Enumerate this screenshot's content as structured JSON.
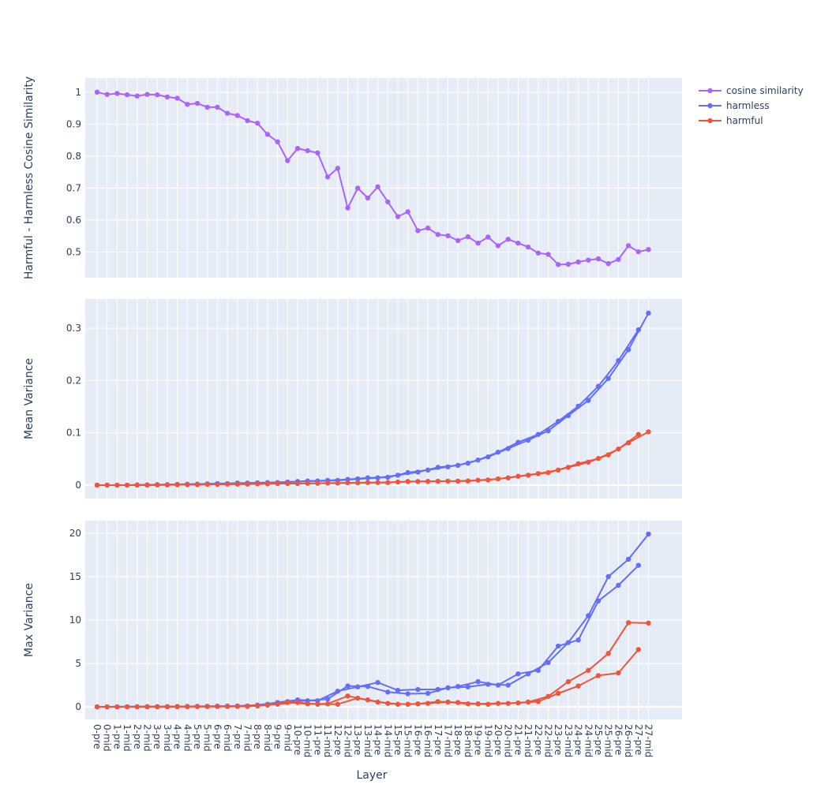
{
  "chart_data": {
    "type": "line",
    "x_label": "Layer",
    "categories": [
      "0-pre",
      "0-mid",
      "1-pre",
      "1-mid",
      "2-pre",
      "2-mid",
      "3-pre",
      "3-mid",
      "4-pre",
      "4-mid",
      "5-pre",
      "5-mid",
      "6-pre",
      "6-mid",
      "7-pre",
      "7-mid",
      "8-pre",
      "8-mid",
      "9-pre",
      "9-mid",
      "10-pre",
      "10-mid",
      "11-pre",
      "11-mid",
      "12-pre",
      "12-mid",
      "13-pre",
      "13-mid",
      "14-pre",
      "14-mid",
      "15-pre",
      "15-mid",
      "16-pre",
      "16-mid",
      "17-pre",
      "17-mid",
      "18-pre",
      "18-mid",
      "19-pre",
      "19-mid",
      "20-pre",
      "20-mid",
      "21-pre",
      "21-mid",
      "22-pre",
      "22-mid",
      "23-pre",
      "23-mid",
      "24-pre",
      "24-mid",
      "25-pre",
      "25-mid",
      "26-pre",
      "26-mid",
      "27-pre",
      "27-mid"
    ],
    "legend": {
      "placement": "top-right",
      "entries": [
        {
          "name": "cosine similarity",
          "color": "#ab63fa"
        },
        {
          "name": "harmless",
          "color": "#636efa"
        },
        {
          "name": "harmful",
          "color": "#ef553b"
        }
      ]
    },
    "subplots": [
      {
        "ylabel": "Harmful - Harmless Cosine Similarity",
        "ylim": [
          0.42,
          1.044
        ],
        "yticks": [
          0.5,
          0.6,
          0.7,
          0.8,
          0.9,
          1
        ],
        "ytick_labels": [
          "0.5",
          "0.6",
          "0.7",
          "0.8",
          "0.9",
          "1"
        ],
        "series": [
          {
            "name": "cosine similarity",
            "color": "#ab63fa",
            "split_pre_mid": false,
            "values": [
              1.0,
              0.993,
              0.996,
              0.992,
              0.988,
              0.993,
              0.992,
              0.985,
              0.981,
              0.962,
              0.965,
              0.953,
              0.953,
              0.934,
              0.927,
              0.911,
              0.903,
              0.868,
              0.845,
              0.786,
              0.824,
              0.817,
              0.81,
              0.735,
              0.762,
              0.638,
              0.7,
              0.669,
              0.704,
              0.657,
              0.611,
              0.626,
              0.567,
              0.575,
              0.555,
              0.551,
              0.536,
              0.548,
              0.528,
              0.547,
              0.52,
              0.54,
              0.528,
              0.516,
              0.497,
              0.493,
              0.461,
              0.462,
              0.469,
              0.475,
              0.479,
              0.464,
              0.477,
              0.52,
              0.501,
              0.508
            ]
          }
        ]
      },
      {
        "ylabel": "Mean Variance",
        "ylim": [
          -0.0256,
          0.356
        ],
        "yticks": [
          0,
          0.1,
          0.2,
          0.3
        ],
        "ytick_labels": [
          "0",
          "0.1",
          "0.2",
          "0.3"
        ],
        "series": [
          {
            "name": "harmless",
            "color": "#636efa",
            "split_pre_mid": true,
            "values": [
              0,
              0,
              0,
              0,
              0.0005,
              0.0005,
              0.001,
              0.001,
              0.0015,
              0.002,
              0.002,
              0.0025,
              0.003,
              0.003,
              0.004,
              0.004,
              0.0045,
              0.005,
              0.005,
              0.006,
              0.007,
              0.008,
              0.008,
              0.009,
              0.009,
              0.011,
              0.012,
              0.014,
              0.014,
              0.015,
              0.019,
              0.024,
              0.025,
              0.029,
              0.034,
              0.035,
              0.038,
              0.042,
              0.048,
              0.054,
              0.063,
              0.07,
              0.082,
              0.086,
              0.097,
              0.104,
              0.122,
              0.133,
              0.151,
              0.162,
              0.189,
              0.204,
              0.238,
              0.259,
              0.297,
              0.329
            ]
          },
          {
            "name": "harmful",
            "color": "#ef553b",
            "split_pre_mid": true,
            "values": [
              0,
              0,
              0,
              0,
              0,
              0,
              0.0005,
              0.0005,
              0.001,
              0.001,
              0.001,
              0.0015,
              0.0015,
              0.002,
              0.002,
              0.002,
              0.0025,
              0.0025,
              0.003,
              0.003,
              0.003,
              0.0035,
              0.0035,
              0.004,
              0.004,
              0.0045,
              0.0045,
              0.005,
              0.005,
              0.005,
              0.006,
              0.007,
              0.007,
              0.0072,
              0.0075,
              0.0077,
              0.0077,
              0.008,
              0.0095,
              0.01,
              0.012,
              0.014,
              0.017,
              0.019,
              0.022,
              0.024,
              0.029,
              0.034,
              0.041,
              0.044,
              0.051,
              0.058,
              0.069,
              0.081,
              0.097,
              0.102
            ]
          }
        ]
      },
      {
        "ylabel": "Max Variance",
        "ylim": [
          -1.45,
          21.45
        ],
        "yticks": [
          0,
          5,
          10,
          15,
          20
        ],
        "ytick_labels": [
          "0",
          "5",
          "10",
          "15",
          "20"
        ],
        "series": [
          {
            "name": "harmless",
            "color": "#636efa",
            "split_pre_mid": true,
            "values": [
              0,
              0,
              0.01,
              0.01,
              0.02,
              0.02,
              0.03,
              0.03,
              0.04,
              0.05,
              0.06,
              0.07,
              0.08,
              0.09,
              0.1,
              0.1,
              0.2,
              0.3,
              0.5,
              0.6,
              0.8,
              0.7,
              0.7,
              0.9,
              1.8,
              2.4,
              2.3,
              2.35,
              2.8,
              1.7,
              1.9,
              1.5,
              2.0,
              1.55,
              2.0,
              2.2,
              2.35,
              2.3,
              2.9,
              2.6,
              2.5,
              2.5,
              3.8,
              3.8,
              4.2,
              5.1,
              7.0,
              7.4,
              7.7,
              10.5,
              12.2,
              15.0,
              14.0,
              17.0,
              16.3,
              19.9
            ]
          },
          {
            "name": "harmful",
            "color": "#ef553b",
            "split_pre_mid": true,
            "values": [
              0,
              0,
              0,
              0,
              0.01,
              0.01,
              0.01,
              0.02,
              0.02,
              0.02,
              0.03,
              0.03,
              0.04,
              0.04,
              0.05,
              0.05,
              0.1,
              0.2,
              0.3,
              0.5,
              0.5,
              0.35,
              0.3,
              0.35,
              0.3,
              1.25,
              1.0,
              0.8,
              0.55,
              0.4,
              0.3,
              0.3,
              0.35,
              0.4,
              0.6,
              0.55,
              0.5,
              0.35,
              0.35,
              0.3,
              0.4,
              0.4,
              0.45,
              0.55,
              0.6,
              1.2,
              1.55,
              2.9,
              2.4,
              4.2,
              3.6,
              6.15,
              3.9,
              9.7,
              6.6,
              9.65
            ]
          }
        ]
      }
    ]
  }
}
